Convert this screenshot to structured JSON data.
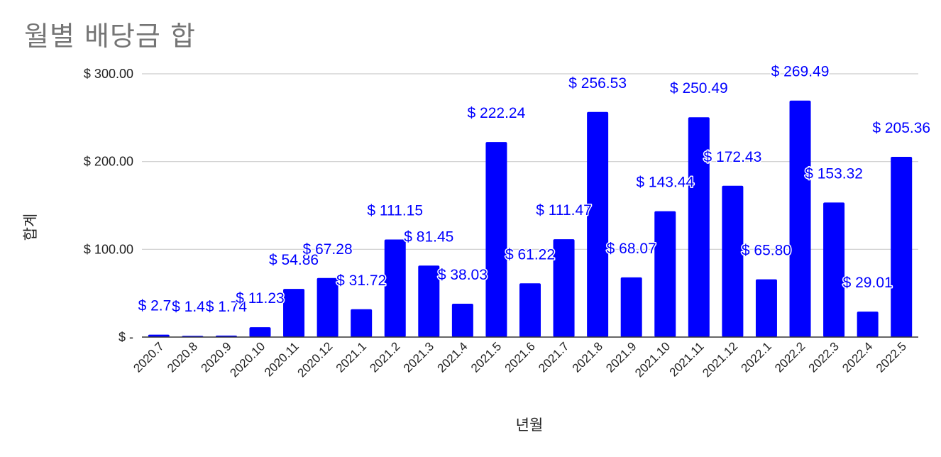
{
  "chart_data": {
    "type": "bar",
    "title": "월별 배당금 합",
    "xlabel": "년월",
    "ylabel": "합계",
    "ylim": [
      0,
      300
    ],
    "yticks": [
      {
        "value": 0,
        "label": "$ -"
      },
      {
        "value": 100,
        "label": "$ 100.00"
      },
      {
        "value": 200,
        "label": "$ 200.00"
      },
      {
        "value": 300,
        "label": "$ 300.00"
      }
    ],
    "grid": true,
    "bar_color": "#0000ff",
    "categories": [
      "2020.7",
      "2020.8",
      "2020.9",
      "2020.10",
      "2020.11",
      "2020.12",
      "2021.1",
      "2021.2",
      "2021.3",
      "2021.4",
      "2021.5",
      "2021.6",
      "2021.7",
      "2021.8",
      "2021.9",
      "2021.10",
      "2021.11",
      "2021.12",
      "2022.1",
      "2022.2",
      "2022.3",
      "2022.4",
      "2022.5"
    ],
    "values": [
      2.73,
      1.45,
      1.74,
      11.23,
      54.86,
      67.28,
      31.72,
      111.15,
      81.45,
      38.03,
      222.24,
      61.22,
      111.47,
      256.53,
      68.07,
      143.44,
      250.49,
      172.43,
      65.8,
      269.49,
      153.32,
      29.01,
      205.36
    ],
    "data_labels": [
      "$ 2.73",
      "$ 1.45",
      "$ 1.74",
      "$ 11.23",
      "$ 54.86",
      "$ 67.28",
      "$ 31.72",
      "$ 111.15",
      "$ 81.45",
      "$ 38.03",
      "$ 222.24",
      "$ 61.22",
      "$ 111.47",
      "$ 256.53",
      "$ 68.07",
      "$ 143.44",
      "$ 250.49",
      "$ 172.43",
      "$ 65.80",
      "$ 269.49",
      "$ 153.32",
      "$ 29.01",
      "$ 205.36"
    ]
  }
}
